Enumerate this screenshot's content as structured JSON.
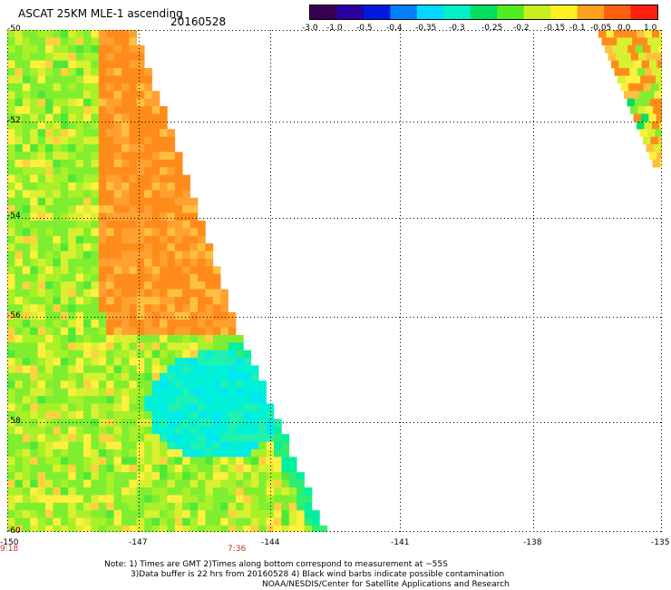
{
  "header": {
    "title": "ASCAT 25KM MLE-1 ascending",
    "date": "20160528"
  },
  "colorbar": {
    "colors": [
      "#3a0050",
      "#2a00a0",
      "#0018e0",
      "#0080ff",
      "#00d8ff",
      "#00f0c8",
      "#00e060",
      "#50ee20",
      "#c8f020",
      "#fff020",
      "#ffa020",
      "#ff6010",
      "#ff2010"
    ],
    "ticks": [
      "-3.0",
      "-1.0",
      "-0.5",
      "-0.4",
      "-0.35",
      "-0.3",
      "-0.25",
      "-0.2",
      "-0.15",
      "-0.1",
      "-0.05",
      "0.0",
      "1.0"
    ]
  },
  "axes": {
    "y_labels": [
      "-50",
      "-52",
      "-54",
      "-56",
      "-58",
      "-60"
    ],
    "x_labels": [
      "-150",
      "-147",
      "-144",
      "-141",
      "-138",
      "-135"
    ]
  },
  "time_labels": [
    "9:18",
    "7:36"
  ],
  "notes": {
    "line1": "Note: 1) Times are GMT 2)Times along bottom correspond to measurement at ~55S",
    "line2": "3)Data buffer is 22 hrs from 20160528 4) Black wind barbs indicate possible contamination",
    "line3": "NOAA/NESDIS/Center for Satellite Applications and Research"
  }
}
